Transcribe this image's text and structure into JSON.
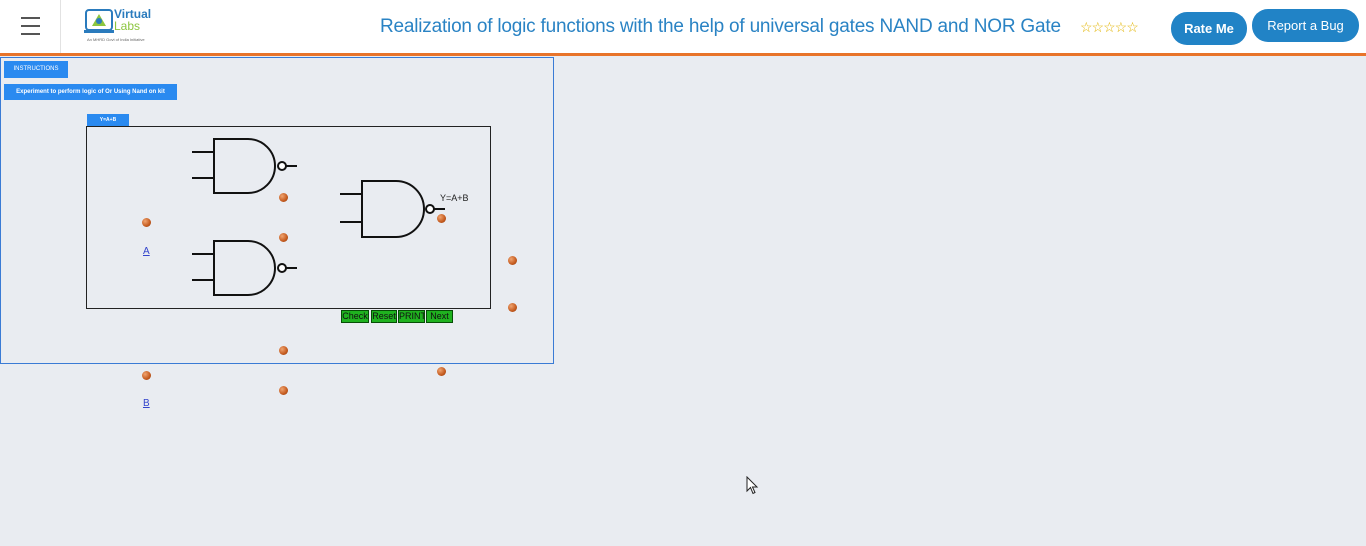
{
  "header": {
    "logo_text_line1": "Virtual",
    "logo_text_line2": "Labs",
    "logo_tagline": "An MHRD Govt of India Initiative",
    "title": "Realization of logic functions with the help of universal gates NAND and NOR Gate",
    "rating_stars": "☆☆☆☆☆",
    "rate_button": "Rate Me",
    "bug_button": "Report a Bug",
    "accent_color": "#e8742a",
    "button_color": "#2183c6"
  },
  "simulator": {
    "instructions_button": "INSTRUCTIONS",
    "experiment_button": "Experiment to perform logic of Or Using Nand on kit",
    "tab_label": "Y=A+B",
    "output_label": "Y=A+B",
    "input_a": "A",
    "input_b": "B",
    "buttons": {
      "check": "Check",
      "reset": "Reset",
      "print": "PRINT",
      "next": "Next"
    }
  }
}
